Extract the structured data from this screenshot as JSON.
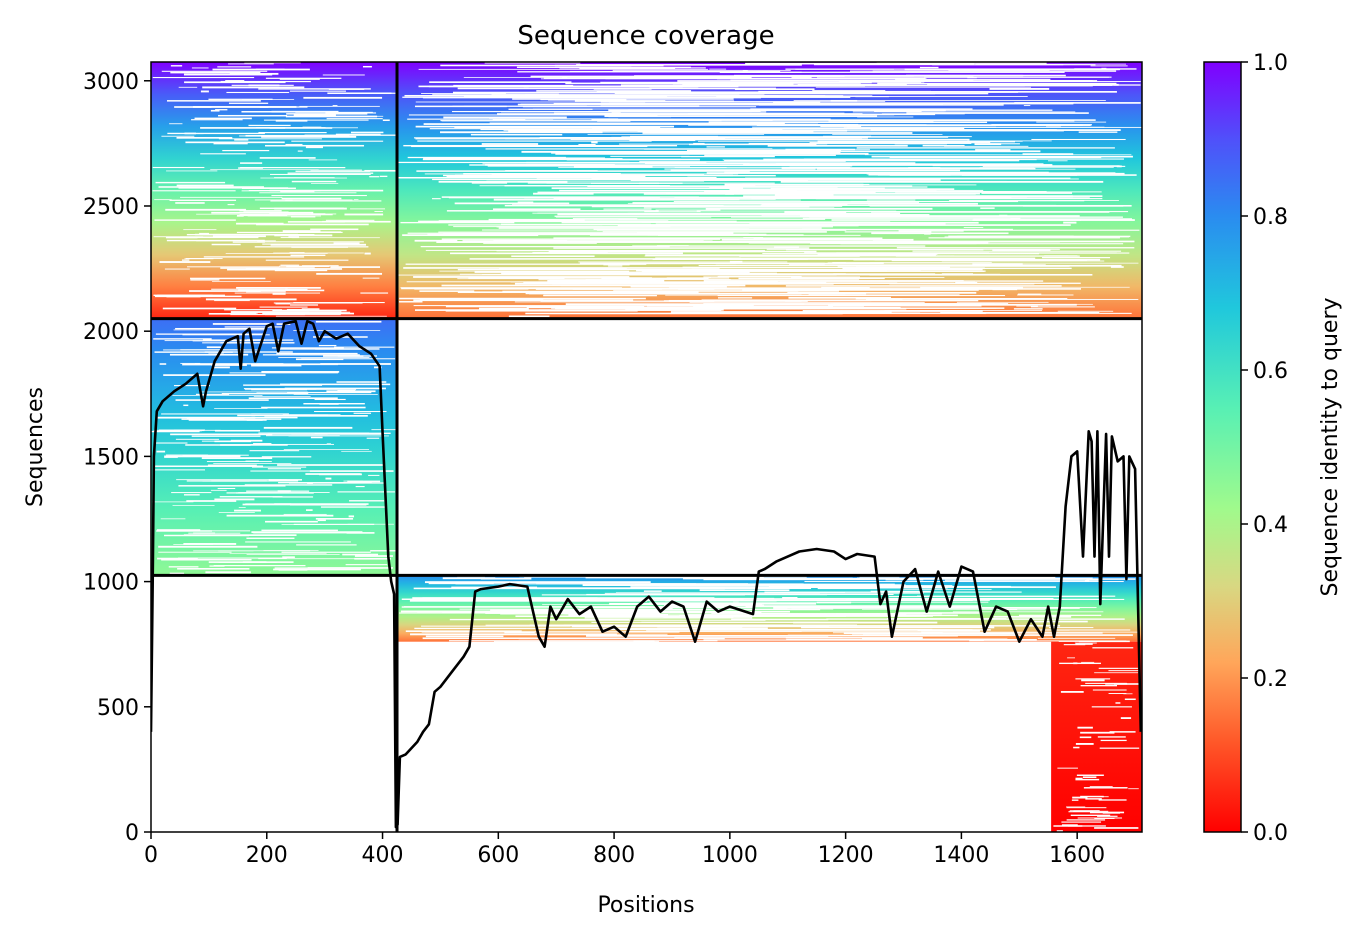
{
  "chart_data": {
    "type": "heatmap",
    "title": "Sequence coverage",
    "xlabel": "Positions",
    "ylabel": "Sequences",
    "xlim": [
      0,
      1712
    ],
    "ylim": [
      0,
      3075
    ],
    "xticks": [
      0,
      200,
      400,
      600,
      800,
      1000,
      1200,
      1400,
      1600
    ],
    "yticks": [
      0,
      500,
      1000,
      1500,
      2000,
      2500,
      3000
    ],
    "colorbar": {
      "label": "Sequence identity to query",
      "ticks": [
        0.0,
        0.2,
        0.4,
        0.6,
        0.8,
        1.0
      ],
      "tick_labels": [
        "0.0",
        "0.2",
        "0.4",
        "0.6",
        "0.8",
        "1.0"
      ],
      "colormap": "rainbow_r"
    },
    "block_separators": {
      "vertical_x": [
        425
      ],
      "horizontal_y": [
        1025,
        2050
      ]
    },
    "coverage_blocks": [
      {
        "x": [
          0,
          425
        ],
        "y": [
          2050,
          3075
        ],
        "identity_top": 1.0,
        "identity_bottom": 0.05
      },
      {
        "x": [
          0,
          425
        ],
        "y": [
          1025,
          2050
        ],
        "identity_top": 0.85,
        "identity_bottom": 0.45
      },
      {
        "x": [
          425,
          1712
        ],
        "y": [
          2050,
          3075
        ],
        "identity_top": 1.0,
        "identity_bottom": 0.15
      },
      {
        "x": [
          425,
          1712
        ],
        "y": [
          760,
          1025
        ],
        "identity_top": 0.8,
        "identity_bottom": 0.15
      },
      {
        "x": [
          1555,
          1712
        ],
        "y": [
          0,
          760
        ],
        "identity_top": 0.05,
        "identity_bottom": 0.0
      }
    ],
    "coverage_line": {
      "x": [
        0,
        3,
        5,
        10,
        20,
        40,
        60,
        80,
        90,
        95,
        100,
        110,
        130,
        150,
        155,
        160,
        170,
        180,
        200,
        210,
        220,
        230,
        250,
        260,
        270,
        280,
        290,
        300,
        320,
        340,
        360,
        380,
        395,
        400,
        410,
        415,
        420,
        423,
        426,
        430,
        440,
        460,
        470,
        480,
        490,
        500,
        520,
        540,
        550,
        560,
        570,
        600,
        620,
        650,
        670,
        680,
        690,
        700,
        720,
        740,
        760,
        780,
        800,
        820,
        840,
        860,
        880,
        900,
        920,
        940,
        960,
        980,
        1000,
        1040,
        1050,
        1060,
        1080,
        1100,
        1120,
        1150,
        1180,
        1200,
        1220,
        1250,
        1260,
        1270,
        1280,
        1300,
        1320,
        1340,
        1360,
        1380,
        1400,
        1420,
        1440,
        1460,
        1480,
        1500,
        1520,
        1540,
        1550,
        1560,
        1570,
        1580,
        1590,
        1600,
        1610,
        1620,
        1625,
        1630,
        1635,
        1640,
        1650,
        1655,
        1660,
        1670,
        1680,
        1685,
        1690,
        1700,
        1710
      ],
      "y": [
        400,
        1000,
        1500,
        1680,
        1720,
        1760,
        1790,
        1830,
        1700,
        1760,
        1800,
        1880,
        1960,
        1980,
        1850,
        1990,
        2010,
        1880,
        2020,
        2030,
        1920,
        2030,
        2040,
        1950,
        2040,
        2030,
        1960,
        2000,
        1970,
        1990,
        1940,
        1910,
        1860,
        1600,
        1100,
        1000,
        950,
        20,
        30,
        300,
        310,
        360,
        400,
        430,
        560,
        580,
        640,
        700,
        740,
        960,
        970,
        980,
        990,
        980,
        780,
        740,
        900,
        850,
        930,
        870,
        900,
        800,
        820,
        780,
        900,
        940,
        880,
        920,
        900,
        760,
        920,
        880,
        900,
        870,
        1040,
        1050,
        1080,
        1100,
        1120,
        1130,
        1120,
        1090,
        1110,
        1100,
        910,
        960,
        780,
        1000,
        1050,
        880,
        1040,
        900,
        1060,
        1040,
        800,
        900,
        880,
        760,
        850,
        780,
        900,
        780,
        900,
        1300,
        1500,
        1520,
        1100,
        1600,
        1560,
        1100,
        1600,
        910,
        1590,
        1100,
        1580,
        1480,
        1500,
        1010,
        1500,
        1450,
        400
      ]
    }
  }
}
